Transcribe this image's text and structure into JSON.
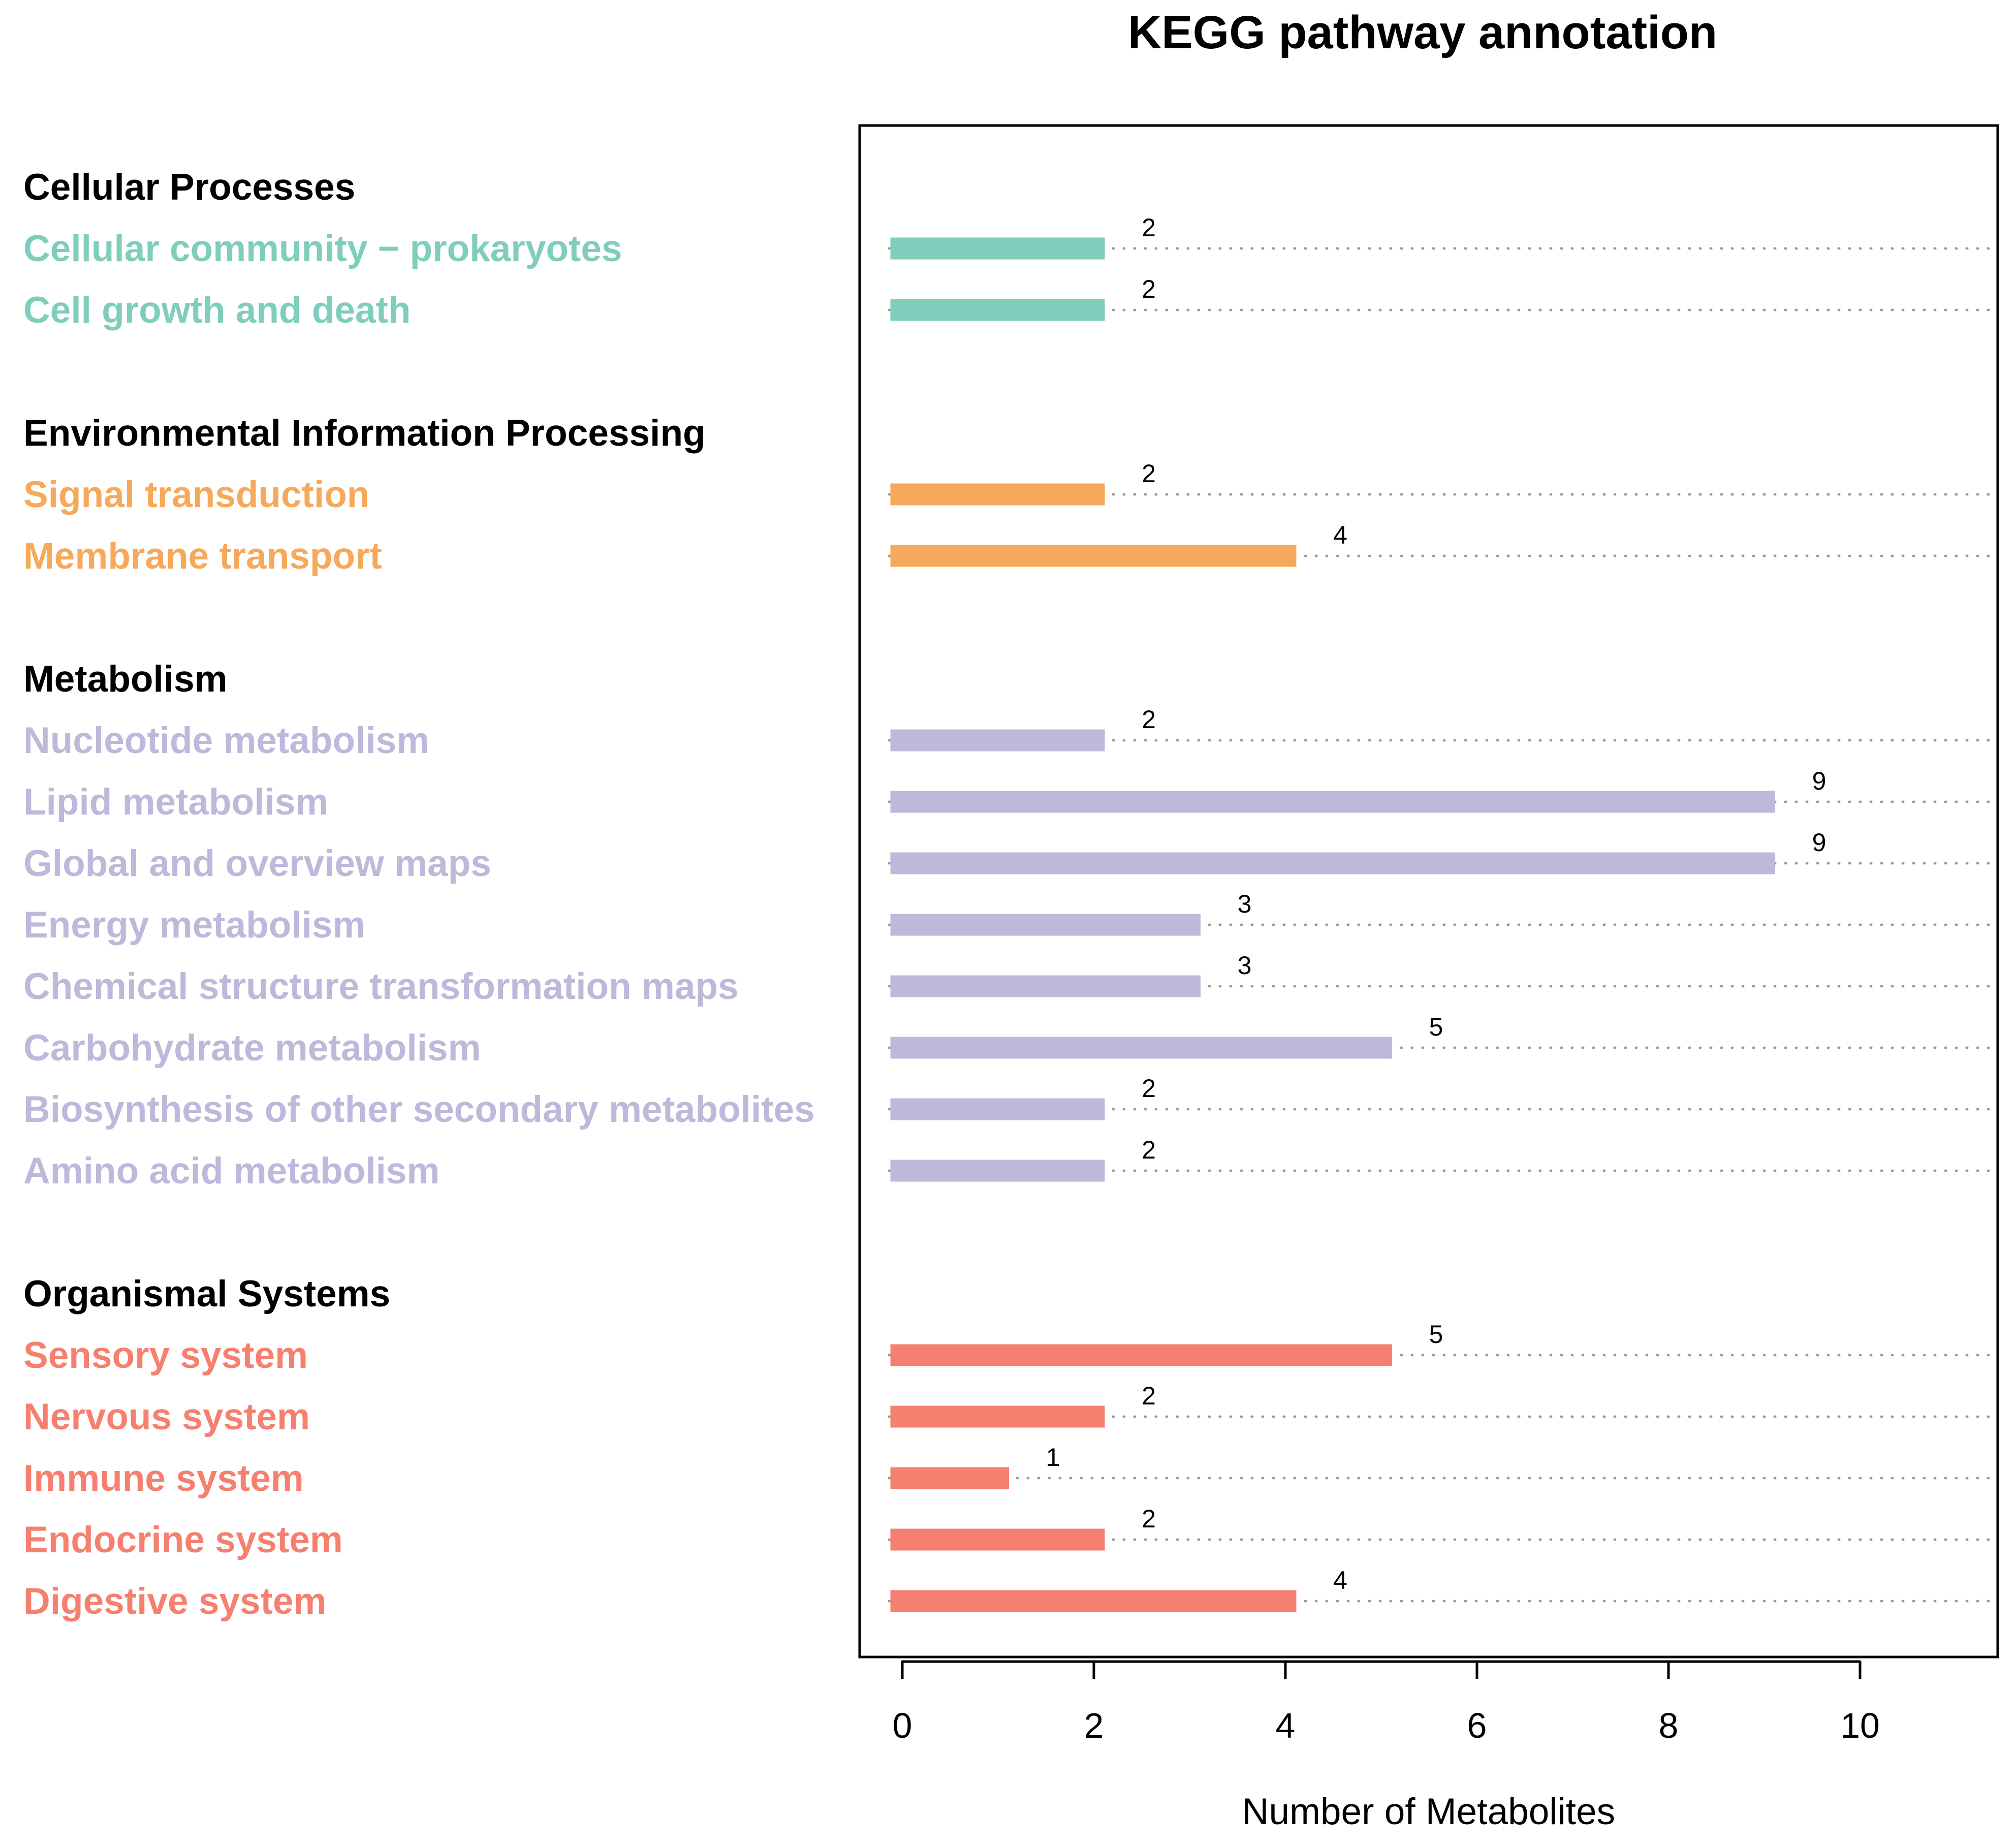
{
  "chart_data": {
    "type": "bar",
    "orientation": "horizontal",
    "title": "KEGG pathway annotation",
    "xlabel": "Number of Metabolites",
    "ylabel": "",
    "xlim": [
      0,
      10
    ],
    "xticks": [
      0,
      2,
      4,
      6,
      8,
      10
    ],
    "grid": "dotted guide line per bar",
    "colors": {
      "Cellular Processes": "#7fcdbb",
      "Environmental Information Processing": "#f6a95a",
      "Metabolism": "#beb9db",
      "Organismal Systems": "#f6806f"
    },
    "groups": [
      {
        "name": "Cellular Processes",
        "categories": [
          "Cellular community − prokaryotes",
          "Cell growth and death"
        ],
        "values": [
          2,
          2
        ]
      },
      {
        "name": "Environmental Information Processing",
        "categories": [
          "Signal transduction",
          "Membrane transport"
        ],
        "values": [
          2,
          4
        ]
      },
      {
        "name": "Metabolism",
        "categories": [
          "Nucleotide metabolism",
          "Lipid metabolism",
          "Global and overview maps",
          "Energy metabolism",
          "Chemical structure transformation maps",
          "Carbohydrate metabolism",
          "Biosynthesis of other secondary metabolites",
          "Amino acid metabolism"
        ],
        "values": [
          2,
          9,
          9,
          3,
          3,
          5,
          2,
          2
        ]
      },
      {
        "name": "Organismal Systems",
        "categories": [
          "Sensory system",
          "Nervous system",
          "Immune system",
          "Endocrine system",
          "Digestive system"
        ],
        "values": [
          5,
          2,
          1,
          2,
          4
        ]
      }
    ]
  }
}
